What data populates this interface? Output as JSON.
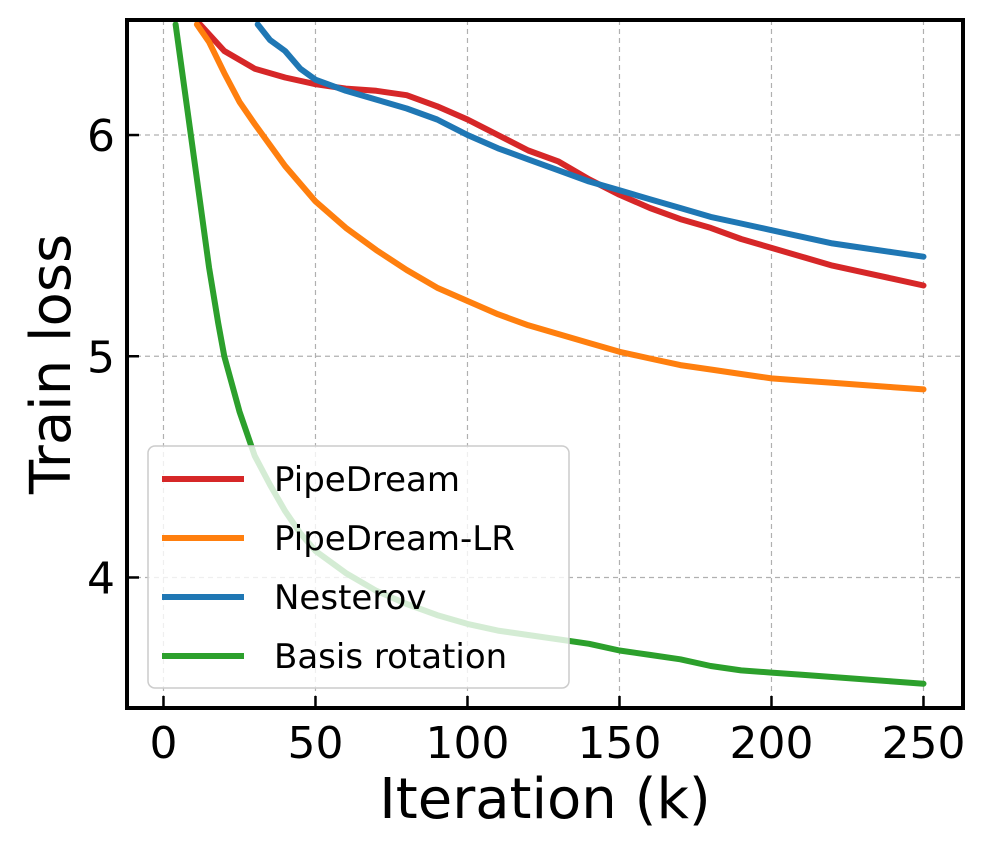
{
  "chart_data": {
    "type": "line",
    "title": "",
    "xlabel": "Iteration (k)",
    "ylabel": "Train loss",
    "xlim": [
      -12,
      263
    ],
    "ylim": [
      3.41,
      6.52
    ],
    "xticks": [
      0,
      50,
      100,
      150,
      200,
      250
    ],
    "yticks": [
      4,
      5,
      6
    ],
    "xtick_labels": [
      "0",
      "50",
      "100",
      "150",
      "200",
      "250"
    ],
    "ytick_labels": [
      "4",
      "5",
      "6"
    ],
    "grid": true,
    "legend_position": "lower-left",
    "series": [
      {
        "name": "PipeDream",
        "color": "#d62728",
        "x": [
          12,
          20,
          30,
          40,
          50,
          60,
          70,
          80,
          90,
          100,
          110,
          120,
          130,
          140,
          150,
          160,
          170,
          180,
          190,
          200,
          210,
          220,
          230,
          240,
          250
        ],
        "y": [
          6.5,
          6.38,
          6.3,
          6.26,
          6.23,
          6.21,
          6.2,
          6.18,
          6.13,
          6.07,
          6.0,
          5.93,
          5.88,
          5.8,
          5.73,
          5.67,
          5.62,
          5.58,
          5.53,
          5.49,
          5.45,
          5.41,
          5.38,
          5.35,
          5.32
        ]
      },
      {
        "name": "PipeDream-LR",
        "color": "#ff7f0e",
        "x": [
          11,
          15,
          20,
          25,
          30,
          40,
          50,
          60,
          70,
          80,
          90,
          100,
          110,
          120,
          130,
          140,
          150,
          160,
          170,
          180,
          190,
          200,
          210,
          220,
          230,
          240,
          250
        ],
        "y": [
          6.5,
          6.42,
          6.28,
          6.15,
          6.05,
          5.86,
          5.7,
          5.58,
          5.48,
          5.39,
          5.31,
          5.25,
          5.19,
          5.14,
          5.1,
          5.06,
          5.02,
          4.99,
          4.96,
          4.94,
          4.92,
          4.9,
          4.89,
          4.88,
          4.87,
          4.86,
          4.85
        ]
      },
      {
        "name": "Nesterov",
        "color": "#1f77b4",
        "x": [
          31,
          35,
          40,
          45,
          50,
          60,
          70,
          80,
          90,
          100,
          110,
          120,
          130,
          140,
          150,
          160,
          170,
          180,
          190,
          200,
          210,
          220,
          230,
          240,
          250
        ],
        "y": [
          6.5,
          6.43,
          6.38,
          6.3,
          6.25,
          6.2,
          6.16,
          6.12,
          6.07,
          6.0,
          5.94,
          5.89,
          5.84,
          5.79,
          5.75,
          5.71,
          5.67,
          5.63,
          5.6,
          5.57,
          5.54,
          5.51,
          5.49,
          5.47,
          5.45
        ]
      },
      {
        "name": "Basis rotation",
        "color": "#2ca02c",
        "x": [
          4,
          6,
          8,
          10,
          12,
          15,
          18,
          20,
          25,
          30,
          35,
          40,
          45,
          50,
          60,
          70,
          80,
          90,
          100,
          110,
          120,
          130,
          140,
          150,
          160,
          170,
          180,
          190,
          200,
          210,
          220,
          230,
          240,
          250
        ],
        "y": [
          6.5,
          6.3,
          6.1,
          5.9,
          5.7,
          5.4,
          5.15,
          5.0,
          4.75,
          4.55,
          4.42,
          4.3,
          4.2,
          4.12,
          4.02,
          3.94,
          3.88,
          3.83,
          3.79,
          3.76,
          3.74,
          3.72,
          3.7,
          3.67,
          3.65,
          3.63,
          3.6,
          3.58,
          3.57,
          3.56,
          3.55,
          3.54,
          3.53,
          3.52
        ]
      }
    ]
  }
}
